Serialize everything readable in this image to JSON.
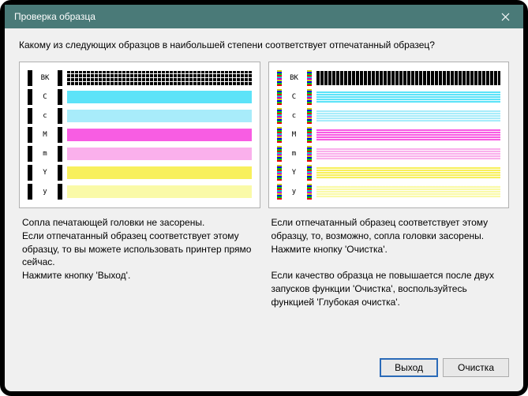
{
  "window": {
    "title": "Проверка образца"
  },
  "question": "Какому из следующих образцов в наибольшей степени соответствует отпечатанный образец?",
  "rows": [
    {
      "label": "BK",
      "color": "#000000",
      "gray": "#888888",
      "type": "grid"
    },
    {
      "label": "C",
      "color": "#5de3f8",
      "gray": "#888888",
      "type": "bar"
    },
    {
      "label": "c",
      "color": "#a8ecfa",
      "gray": "#888888",
      "type": "bar"
    },
    {
      "label": "M",
      "color": "#f85de3",
      "gray": "#888888",
      "type": "bar"
    },
    {
      "label": "m",
      "color": "#fab0ec",
      "gray": "#888888",
      "type": "bar"
    },
    {
      "label": "Y",
      "color": "#f8f05d",
      "gray": "#888888",
      "type": "bar"
    },
    {
      "label": "y",
      "color": "#fafaa8",
      "gray": "#888888",
      "type": "bar"
    }
  ],
  "explain": {
    "good": "Сопла печатающей головки не засорены.\nЕсли отпечатанный образец соответствует этому образцу, то вы можете использовать принтер прямо сейчас.\nНажмите кнопку 'Выход'.",
    "bad": "Если отпечатанный образец соответствует этому образцу, то, возможно, сопла головки засорены.\nНажмите кнопку 'Очистка'.\n\nЕсли качество образца не повышается после двух запусков функции 'Очистка', воспользуйтесь функцией 'Глубокая очистка'."
  },
  "buttons": {
    "exit": "Выход",
    "clean": "Очистка"
  }
}
